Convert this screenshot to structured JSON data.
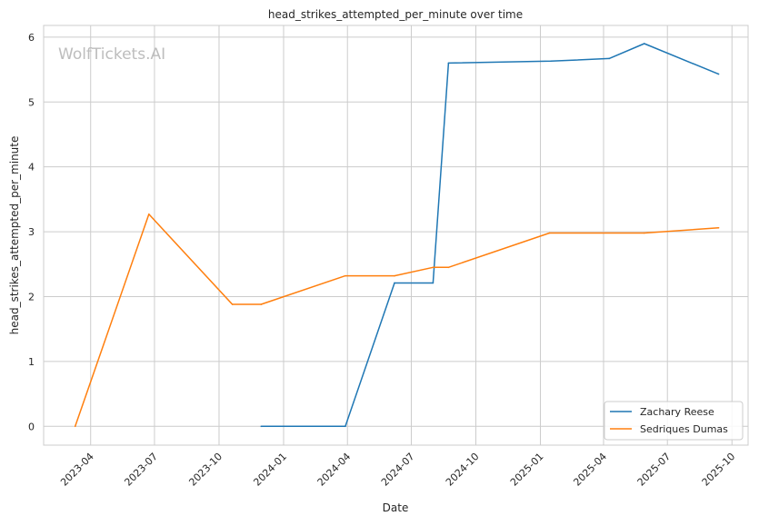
{
  "chart_data": {
    "type": "line",
    "title": "head_strikes_attempted_per_minute over time",
    "xlabel": "Date",
    "ylabel": "head_strikes_attempted_per_minute",
    "xlim": [
      "2023-01-24",
      "2025-10-24"
    ],
    "ylim": [
      -0.29,
      6.18
    ],
    "x_ticks": [
      "2023-04",
      "2023-07",
      "2023-10",
      "2024-01",
      "2024-04",
      "2024-07",
      "2024-10",
      "2025-01",
      "2025-04",
      "2025-07",
      "2025-10"
    ],
    "y_ticks": [
      0,
      1,
      2,
      3,
      4,
      5,
      6
    ],
    "grid": true,
    "legend_position": "bottom-right",
    "watermark": "WolfTickets.AI",
    "series": [
      {
        "name": "Zachary Reese",
        "color": "#1f77b4",
        "points": [
          {
            "x": "2023-11-30",
            "y": 0
          },
          {
            "x": "2024-03-29",
            "y": 0
          },
          {
            "x": "2024-06-07",
            "y": 2.21
          },
          {
            "x": "2024-08-01",
            "y": 2.21
          },
          {
            "x": "2024-08-23",
            "y": 5.6
          },
          {
            "x": "2025-01-16",
            "y": 5.63
          },
          {
            "x": "2025-04-09",
            "y": 5.67
          },
          {
            "x": "2025-05-29",
            "y": 5.9
          },
          {
            "x": "2025-09-12",
            "y": 5.43
          }
        ]
      },
      {
        "name": "Sedriques Dumas",
        "color": "#ff7f0e",
        "points": [
          {
            "x": "2023-03-10",
            "y": 0
          },
          {
            "x": "2023-06-23",
            "y": 3.27
          },
          {
            "x": "2023-10-20",
            "y": 1.88
          },
          {
            "x": "2023-11-30",
            "y": 1.88
          },
          {
            "x": "2024-03-29",
            "y": 2.32
          },
          {
            "x": "2024-06-07",
            "y": 2.32
          },
          {
            "x": "2024-08-01",
            "y": 2.45
          },
          {
            "x": "2024-08-23",
            "y": 2.45
          },
          {
            "x": "2025-01-14",
            "y": 2.98
          },
          {
            "x": "2025-05-29",
            "y": 2.98
          },
          {
            "x": "2025-09-12",
            "y": 3.06
          }
        ]
      }
    ]
  }
}
